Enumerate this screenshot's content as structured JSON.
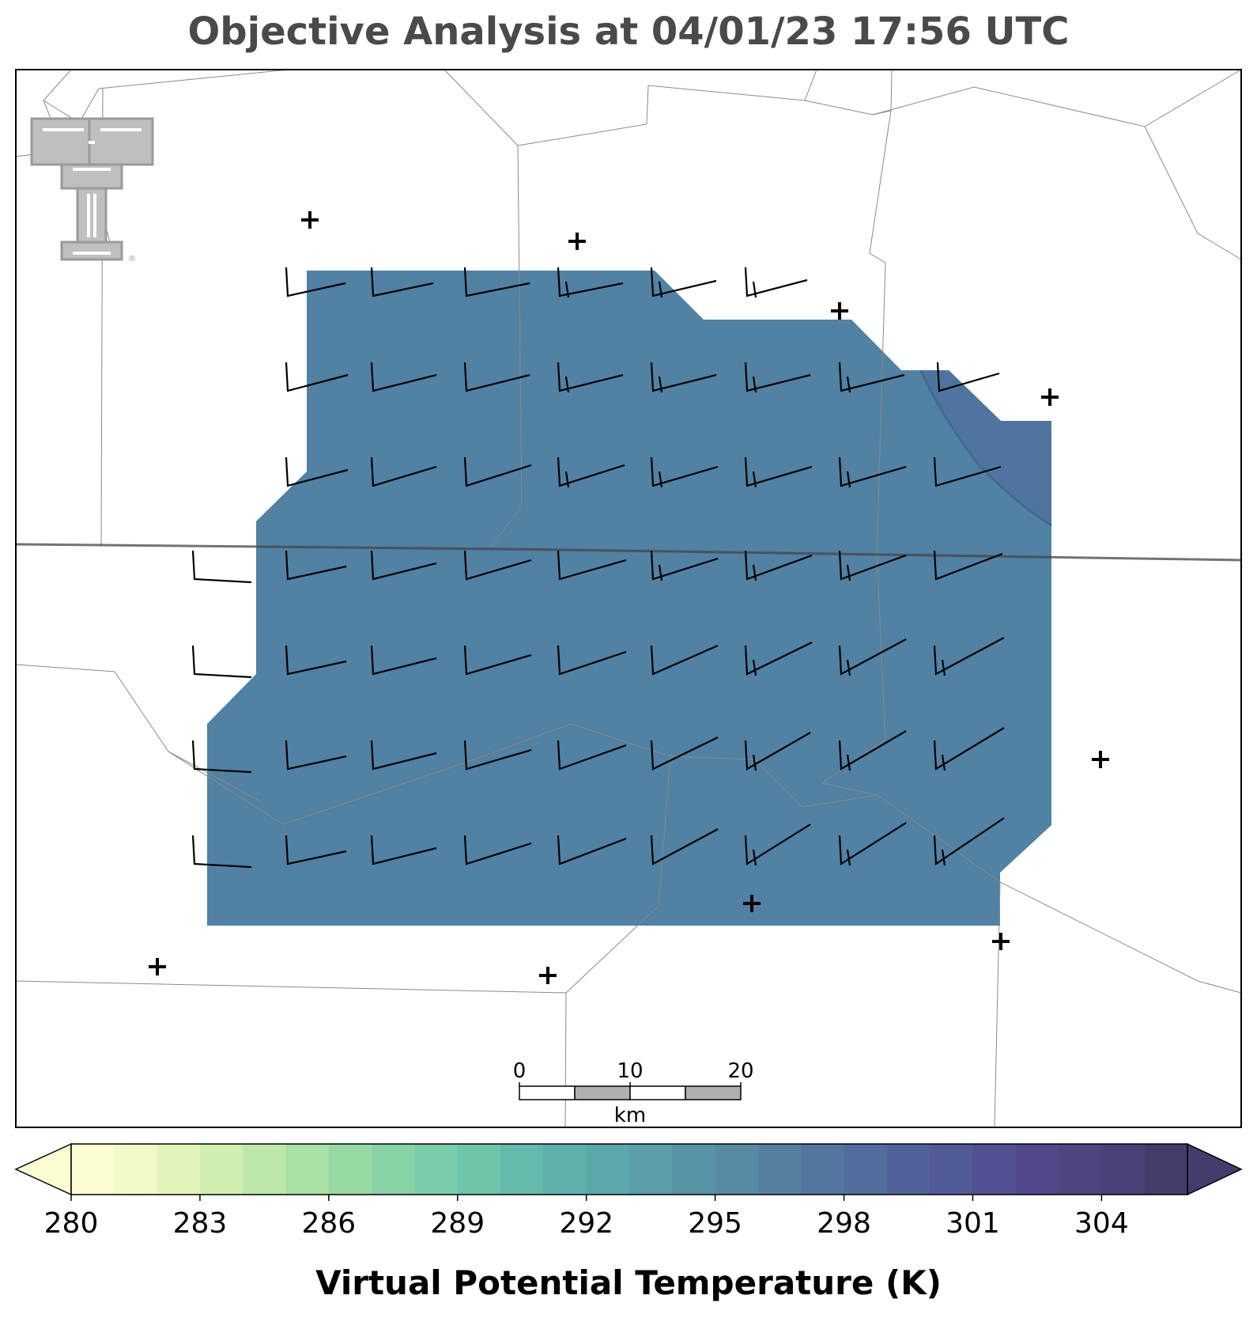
{
  "title": "Objective Analysis at 04/01/23 17:56 UTC",
  "field": {
    "name": "Virtual Potential Temperature (K)",
    "fill_color": "#5181a3",
    "highlight_color": "#4f74a0"
  },
  "colorbar": {
    "label": "Virtual Potential Temperature (K)",
    "min": 280,
    "max": 306,
    "step": 1,
    "ticks": [
      280,
      283,
      286,
      289,
      292,
      295,
      298,
      301,
      304
    ],
    "tick_labels": [
      "280",
      "283",
      "286",
      "289",
      "292",
      "295",
      "298",
      "301",
      "304"
    ],
    "colors": [
      "#fbfdd0",
      "#f1f9c7",
      "#e2f4ba",
      "#d0eeb0",
      "#bde7aa",
      "#a9e0a4",
      "#97d9a3",
      "#86d3a6",
      "#78cca9",
      "#6dc4ab",
      "#64bbab",
      "#5eb1ab",
      "#5ba8aa",
      "#5a9ea7",
      "#5894a5",
      "#578aa3",
      "#5580a1",
      "#53769f",
      "#526c9d",
      "#51629b",
      "#515997",
      "#505092",
      "#504a8a",
      "#4e4581",
      "#4b4077",
      "#463c6b"
    ],
    "extend": "both"
  },
  "scale_bar": {
    "labels": [
      "0",
      "10",
      "20"
    ],
    "unit": "km",
    "max_km": 20
  },
  "logo": {
    "text": "TT",
    "mark": "®"
  },
  "wind_barbs": {
    "note_units": "kt",
    "grid": [
      [
        "",
        "",
        "",
        "",
        "",
        "",
        "",
        "",
        "",
        ""
      ],
      [
        "",
        "",
        "",
        "",
        "",
        "",
        "",
        "",
        "",
        ""
      ]
    ]
  }
}
